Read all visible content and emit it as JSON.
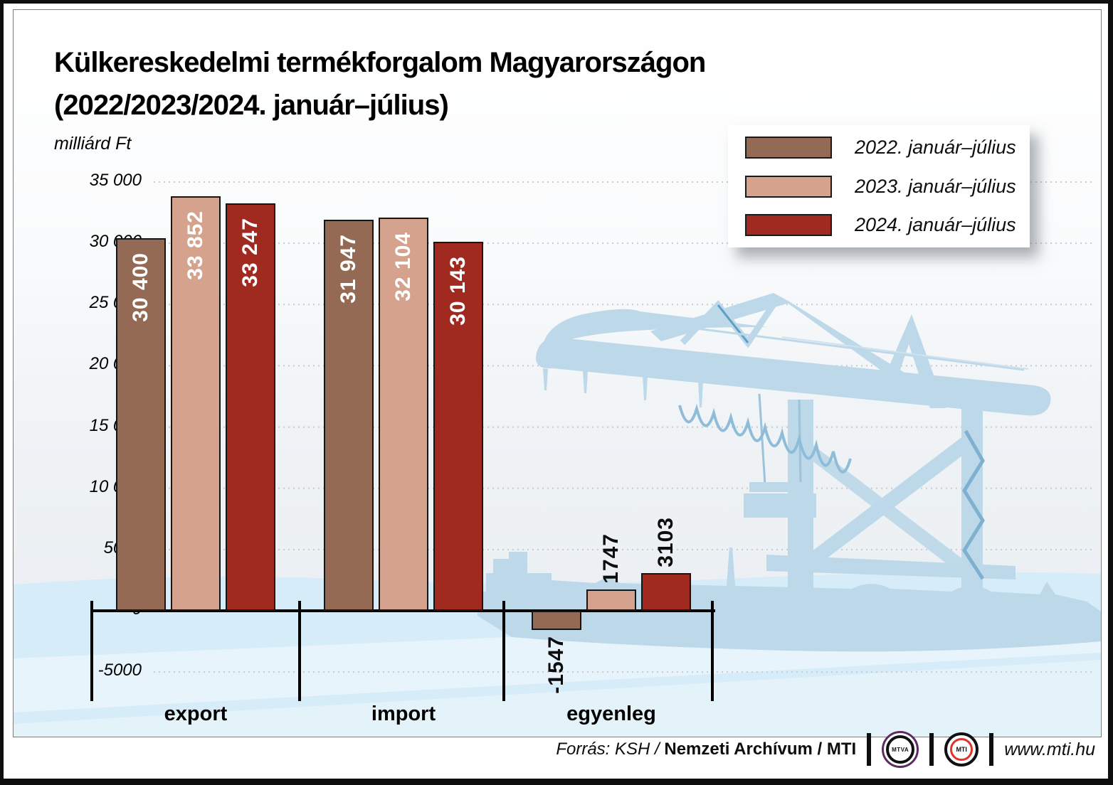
{
  "title": {
    "line1": "Külkereskedelmi termékforgalom Magyarországon",
    "line2": "(2022/2023/2024. január–július)"
  },
  "unit_label": "milliárd Ft",
  "legend": {
    "items": [
      {
        "label": "2022. január–július",
        "color": "#956a54"
      },
      {
        "label": "2023. január–július",
        "color": "#d4a28d"
      },
      {
        "label": "2024. január–július",
        "color": "#a02a20"
      }
    ]
  },
  "chart_data": {
    "type": "bar",
    "title": "Külkereskedelmi termékforgalom Magyarországon (2022/2023/2024. január–július)",
    "unit": "milliárd Ft",
    "categories": [
      "export",
      "import",
      "egyenleg"
    ],
    "series": [
      {
        "name": "2022. január–július",
        "color": "#956a54",
        "values": [
          30400,
          31947,
          -1547
        ],
        "display_values": [
          "30 400",
          "31 947",
          "-1547"
        ]
      },
      {
        "name": "2023. január–július",
        "color": "#d4a28d",
        "values": [
          33852,
          32104,
          1747
        ],
        "display_values": [
          "33 852",
          "32 104",
          "1747"
        ]
      },
      {
        "name": "2024. január–július",
        "color": "#a02a20",
        "values": [
          33247,
          30143,
          3103
        ],
        "display_values": [
          "33 247",
          "30 143",
          "3103"
        ]
      }
    ],
    "yticks": [
      {
        "value": 35000,
        "label": "35 000"
      },
      {
        "value": 30000,
        "label": "30 000"
      },
      {
        "value": 25000,
        "label": "25 000"
      },
      {
        "value": 20000,
        "label": "20 000"
      },
      {
        "value": 15000,
        "label": "15 000"
      },
      {
        "value": 10000,
        "label": "10 000"
      },
      {
        "value": 5000,
        "label": "5000"
      },
      {
        "value": 0,
        "label": "0"
      },
      {
        "value": -5000,
        "label": "-5000"
      }
    ],
    "ylim": [
      -5000,
      35000
    ],
    "xlabel": "",
    "ylabel": "milliárd Ft",
    "grid": "dotted-horizontal",
    "legend_position": "top-right"
  },
  "footer": {
    "source_italic": "Forrás: KSH /",
    "source_bold": "Nemzeti Archívum / MTI",
    "mtva_label": "MTVA",
    "mti_label": "MTI",
    "website": "www.mti.hu"
  }
}
